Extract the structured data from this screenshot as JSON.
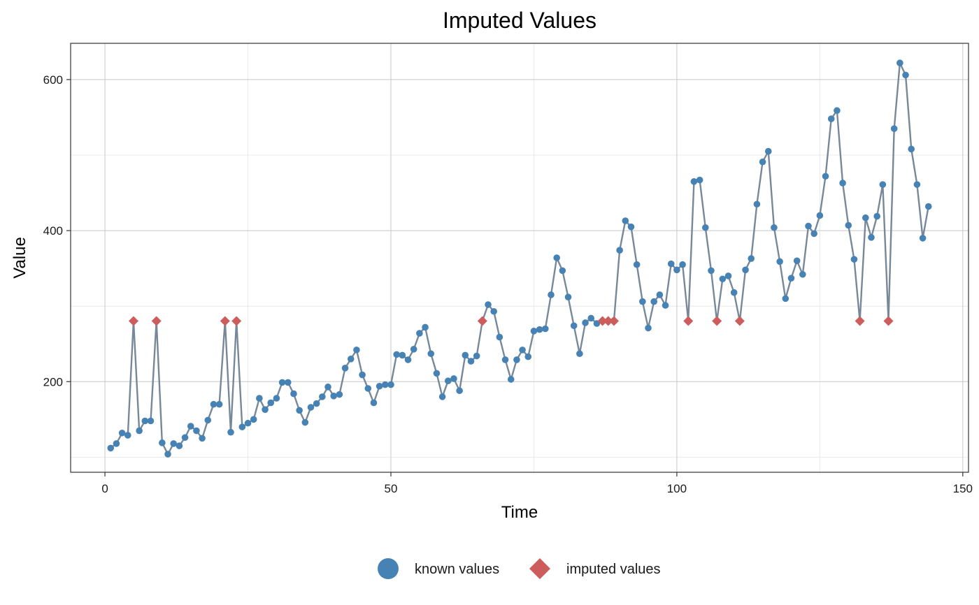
{
  "chart_data": {
    "type": "line",
    "title": "Imputed Values",
    "xlabel": "Time",
    "ylabel": "Value",
    "xlim": [
      -6,
      151
    ],
    "ylim": [
      80,
      648
    ],
    "x_ticks": [
      0,
      50,
      100,
      150
    ],
    "y_ticks": [
      200,
      400,
      600
    ],
    "x_minor_ticks": [
      25,
      75,
      125
    ],
    "y_minor_ticks": [
      100,
      300,
      500
    ],
    "grid": true,
    "legend_position": "bottom",
    "colors": {
      "line": "#778899",
      "known": "#4682B4",
      "imputed": "#CD5C5C",
      "grid_major": "#c8c8c8",
      "grid_minor": "#e4e4e4"
    },
    "series": [
      {
        "name": "known values",
        "marker": "circle",
        "x": [
          1,
          2,
          3,
          4,
          6,
          7,
          8,
          10,
          11,
          12,
          13,
          14,
          15,
          16,
          17,
          18,
          19,
          20,
          22,
          24,
          25,
          26,
          27,
          28,
          29,
          30,
          31,
          32,
          33,
          34,
          35,
          36,
          37,
          38,
          39,
          40,
          41,
          42,
          43,
          44,
          45,
          46,
          47,
          48,
          49,
          50,
          51,
          52,
          53,
          54,
          55,
          56,
          57,
          58,
          59,
          60,
          61,
          62,
          63,
          64,
          65,
          67,
          68,
          69,
          70,
          71,
          72,
          73,
          74,
          75,
          76,
          77,
          78,
          79,
          80,
          81,
          82,
          83,
          84,
          85,
          86,
          90,
          91,
          92,
          93,
          94,
          95,
          96,
          97,
          98,
          99,
          100,
          101,
          103,
          104,
          105,
          106,
          108,
          109,
          110,
          112,
          113,
          114,
          115,
          116,
          117,
          118,
          119,
          120,
          121,
          122,
          123,
          124,
          125,
          126,
          127,
          128,
          129,
          130,
          131,
          133,
          134,
          135,
          136,
          138,
          139,
          140,
          141,
          142,
          143,
          144
        ],
        "y": [
          112,
          118,
          132,
          129,
          135,
          148,
          148,
          119,
          104,
          118,
          115,
          126,
          141,
          135,
          125,
          149,
          170,
          170,
          133,
          140,
          145,
          150,
          178,
          163,
          172,
          178,
          199,
          199,
          184,
          162,
          146,
          166,
          171,
          180,
          193,
          181,
          183,
          218,
          230,
          242,
          209,
          191,
          172,
          194,
          196,
          196,
          236,
          235,
          229,
          243,
          264,
          272,
          237,
          211,
          180,
          201,
          204,
          188,
          235,
          227,
          234,
          302,
          293,
          259,
          229,
          203,
          229,
          242,
          233,
          267,
          269,
          270,
          315,
          364,
          347,
          312,
          274,
          237,
          278,
          284,
          277,
          374,
          413,
          405,
          355,
          306,
          271,
          306,
          315,
          301,
          356,
          348,
          355,
          465,
          467,
          404,
          347,
          336,
          340,
          318,
          348,
          363,
          435,
          491,
          505,
          404,
          359,
          310,
          337,
          360,
          342,
          406,
          396,
          420,
          472,
          548,
          559,
          463,
          407,
          362,
          417,
          391,
          419,
          461,
          535,
          622,
          606,
          508,
          461,
          390,
          432
        ]
      },
      {
        "name": "imputed values",
        "marker": "diamond",
        "x": [
          5,
          9,
          21,
          23,
          66,
          87,
          88,
          89,
          102,
          107,
          111,
          132,
          137
        ],
        "y": [
          280.3,
          280.3,
          280.3,
          280.3,
          280.3,
          280.3,
          280.3,
          280.3,
          280.3,
          280.3,
          280.3,
          280.3,
          280.3
        ]
      }
    ]
  }
}
